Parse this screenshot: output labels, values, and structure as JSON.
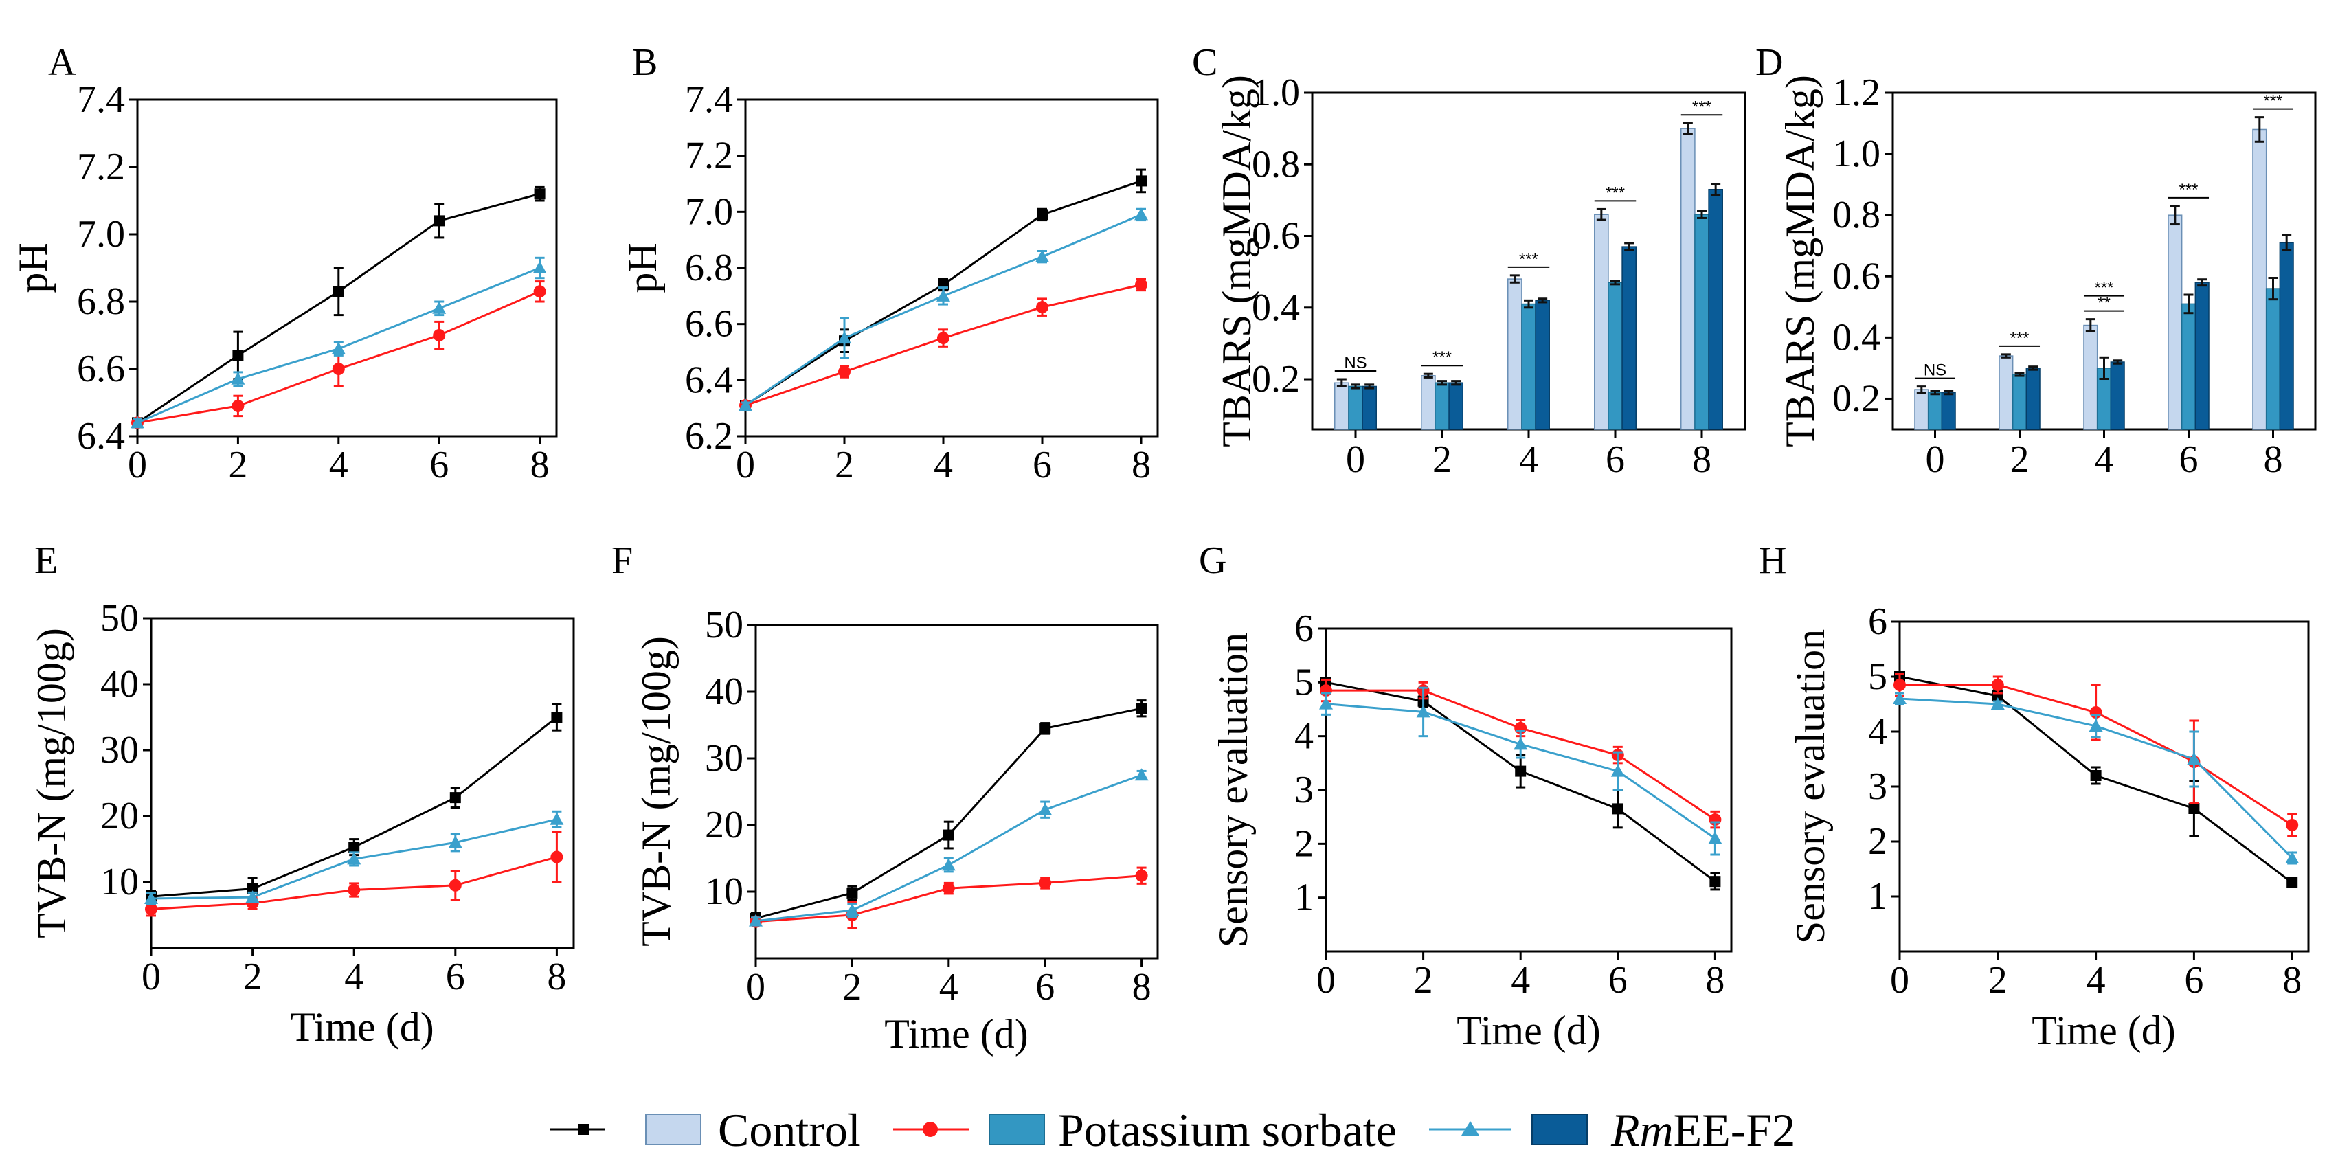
{
  "legend": {
    "items": [
      {
        "label": "Control",
        "line_color": "#000000",
        "bar_color": "#c5d7ee"
      },
      {
        "label": "Potassium sorbate",
        "line_color": "#ff1a1a",
        "bar_color": "#3397c2"
      },
      {
        "label_italic": "Rm",
        "label_rest": "EE-F2",
        "line_color": "#3aa0cc",
        "bar_color": "#0a5c98"
      }
    ]
  },
  "chart_data": [
    {
      "panel": "A",
      "type": "line",
      "ylabel": "pH",
      "xlabel": "",
      "x": [
        0,
        2,
        4,
        6,
        8
      ],
      "ylim": [
        6.4,
        7.4
      ],
      "yticks": [
        6.4,
        6.6,
        6.8,
        7.0,
        7.2,
        7.4
      ],
      "ytick_labels": [
        "6.4",
        "6.6",
        "6.8",
        "7.0",
        "7.2",
        "7.4"
      ],
      "xticks": [
        0,
        2,
        4,
        6,
        8
      ],
      "series": [
        {
          "name": "Control",
          "values": [
            6.44,
            6.64,
            6.83,
            7.04,
            7.12
          ],
          "errors": [
            0.01,
            0.07,
            0.07,
            0.05,
            0.02
          ]
        },
        {
          "name": "Potassium sorbate",
          "values": [
            6.44,
            6.49,
            6.6,
            6.7,
            6.83
          ],
          "errors": [
            0.01,
            0.03,
            0.05,
            0.04,
            0.03
          ]
        },
        {
          "name": "RmEE-F2",
          "values": [
            6.44,
            6.57,
            6.66,
            6.78,
            6.9
          ],
          "errors": [
            0.01,
            0.02,
            0.02,
            0.02,
            0.03
          ]
        }
      ]
    },
    {
      "panel": "B",
      "type": "line",
      "ylabel": "pH",
      "xlabel": "",
      "x": [
        0,
        2,
        4,
        6,
        8
      ],
      "ylim": [
        6.2,
        7.4
      ],
      "yticks": [
        6.2,
        6.4,
        6.6,
        6.8,
        7.0,
        7.2,
        7.4
      ],
      "ytick_labels": [
        "6.2",
        "6.4",
        "6.6",
        "6.8",
        "7.0",
        "7.2",
        "7.4"
      ],
      "xticks": [
        0,
        2,
        4,
        6,
        8
      ],
      "series": [
        {
          "name": "Control",
          "values": [
            6.31,
            6.54,
            6.74,
            6.99,
            7.11
          ],
          "errors": [
            0.01,
            0.04,
            0.02,
            0.02,
            0.04
          ]
        },
        {
          "name": "Potassium sorbate",
          "values": [
            6.31,
            6.43,
            6.55,
            6.66,
            6.74
          ],
          "errors": [
            0.01,
            0.02,
            0.03,
            0.03,
            0.02
          ]
        },
        {
          "name": "RmEE-F2",
          "values": [
            6.31,
            6.55,
            6.7,
            6.84,
            6.99
          ],
          "errors": [
            0.01,
            0.07,
            0.03,
            0.02,
            0.02
          ]
        }
      ]
    },
    {
      "panel": "C",
      "type": "bar",
      "ylabel": "TBARS (mgMDA/kg)",
      "xlabel": "",
      "categories": [
        "0",
        "2",
        "4",
        "6",
        "8"
      ],
      "ylim": [
        0.06,
        1.0
      ],
      "yticks": [
        0.2,
        0.4,
        0.6,
        0.8,
        1.0
      ],
      "ytick_labels": [
        "0.2",
        "0.4",
        "0.6",
        "0.8",
        "1.0"
      ],
      "significance": [
        "NS",
        "***",
        "***",
        "***",
        "***"
      ],
      "series": [
        {
          "name": "Control",
          "values": [
            0.19,
            0.21,
            0.48,
            0.66,
            0.9
          ],
          "errors": [
            0.01,
            0.005,
            0.01,
            0.015,
            0.015
          ]
        },
        {
          "name": "Potassium sorbate",
          "values": [
            0.18,
            0.19,
            0.41,
            0.47,
            0.66
          ],
          "errors": [
            0.005,
            0.005,
            0.01,
            0.005,
            0.01
          ]
        },
        {
          "name": "RmEE-F2",
          "values": [
            0.18,
            0.19,
            0.42,
            0.57,
            0.73
          ],
          "errors": [
            0.005,
            0.005,
            0.005,
            0.01,
            0.015
          ]
        }
      ]
    },
    {
      "panel": "D",
      "type": "bar",
      "ylabel": "TBARS (mgMDA/kg)",
      "xlabel": "",
      "categories": [
        "0",
        "2",
        "4",
        "6",
        "8"
      ],
      "ylim": [
        0.1,
        1.2
      ],
      "yticks": [
        0.2,
        0.4,
        0.6,
        0.8,
        1.0,
        1.2
      ],
      "ytick_labels": [
        "0.2",
        "0.4",
        "0.6",
        "0.8",
        "1.0",
        "1.2"
      ],
      "significance": [
        "NS",
        "***",
        "**|***",
        "***",
        "***"
      ],
      "series": [
        {
          "name": "Control",
          "values": [
            0.23,
            0.34,
            0.44,
            0.8,
            1.08
          ],
          "errors": [
            0.01,
            0.005,
            0.02,
            0.03,
            0.04
          ]
        },
        {
          "name": "Potassium sorbate",
          "values": [
            0.22,
            0.28,
            0.3,
            0.51,
            0.56
          ],
          "errors": [
            0.005,
            0.005,
            0.035,
            0.03,
            0.035
          ]
        },
        {
          "name": "RmEE-F2",
          "values": [
            0.22,
            0.3,
            0.32,
            0.58,
            0.71
          ],
          "errors": [
            0.005,
            0.005,
            0.005,
            0.01,
            0.025
          ]
        }
      ]
    },
    {
      "panel": "E",
      "type": "line",
      "ylabel": "TVB-N (mg/100g)",
      "xlabel": "Time (d)",
      "x": [
        0,
        2,
        4,
        6,
        8
      ],
      "ylim": [
        0,
        50
      ],
      "yticks": [
        10,
        20,
        30,
        40,
        50
      ],
      "ytick_labels": [
        "10",
        "20",
        "30",
        "40",
        "50"
      ],
      "xticks": [
        0,
        2,
        4,
        6,
        8
      ],
      "series": [
        {
          "name": "Control",
          "values": [
            7.8,
            9.0,
            15.3,
            22.8,
            35.0
          ],
          "errors": [
            0.8,
            1.6,
            1.2,
            1.5,
            2.0
          ]
        },
        {
          "name": "Potassium sorbate",
          "values": [
            5.9,
            6.8,
            8.8,
            9.5,
            13.8
          ],
          "errors": [
            1.0,
            0.9,
            1.0,
            2.2,
            3.8
          ]
        },
        {
          "name": "RmEE-F2",
          "values": [
            7.5,
            7.7,
            13.5,
            16.0,
            19.5
          ],
          "errors": [
            0.8,
            0.7,
            1.0,
            1.3,
            1.2
          ]
        }
      ]
    },
    {
      "panel": "F",
      "type": "line",
      "ylabel": "TVB-N (mg/100g)",
      "xlabel": "Time (d)",
      "x": [
        0,
        2,
        4,
        6,
        8
      ],
      "ylim": [
        0,
        50
      ],
      "yticks": [
        10,
        20,
        30,
        40,
        50
      ],
      "ytick_labels": [
        "10",
        "20",
        "30",
        "40",
        "50"
      ],
      "xticks": [
        0,
        2,
        4,
        6,
        8
      ],
      "series": [
        {
          "name": "Control",
          "values": [
            6.0,
            9.8,
            18.5,
            34.5,
            37.5
          ],
          "errors": [
            0.8,
            1.0,
            2.0,
            0.8,
            1.2
          ]
        },
        {
          "name": "Potassium sorbate",
          "values": [
            5.5,
            6.5,
            10.5,
            11.3,
            12.4
          ],
          "errors": [
            0.5,
            2.0,
            0.8,
            0.8,
            1.2
          ]
        },
        {
          "name": "RmEE-F2",
          "values": [
            5.6,
            7.2,
            14.0,
            22.3,
            27.5
          ],
          "errors": [
            0.5,
            1.0,
            1.0,
            1.2,
            0.6
          ]
        }
      ]
    },
    {
      "panel": "G",
      "type": "line",
      "ylabel": "Sensory evaluation",
      "xlabel": "Time (d)",
      "x": [
        0,
        2,
        4,
        6,
        8
      ],
      "ylim": [
        0,
        6
      ],
      "yticks": [
        1,
        2,
        3,
        4,
        5,
        6
      ],
      "ytick_labels": [
        "1",
        "2",
        "3",
        "4",
        "5",
        "6"
      ],
      "xticks": [
        0,
        2,
        4,
        6,
        8
      ],
      "series": [
        {
          "name": "Control",
          "values": [
            5.0,
            4.65,
            3.35,
            2.65,
            1.3
          ],
          "errors": [
            0.05,
            0.1,
            0.3,
            0.35,
            0.15
          ]
        },
        {
          "name": "Potassium sorbate",
          "values": [
            4.85,
            4.85,
            4.15,
            3.65,
            2.45
          ],
          "errors": [
            0.2,
            0.15,
            0.15,
            0.15,
            0.15
          ]
        },
        {
          "name": "RmEE-F2",
          "values": [
            4.6,
            4.45,
            3.85,
            3.35,
            2.1
          ],
          "errors": [
            0.2,
            0.45,
            0.25,
            0.35,
            0.3
          ]
        }
      ]
    },
    {
      "panel": "H",
      "type": "line",
      "ylabel": "Sensory evaluation",
      "xlabel": "Time (d)",
      "x": [
        0,
        2,
        4,
        6,
        8
      ],
      "ylim": [
        0,
        6
      ],
      "yticks": [
        1,
        2,
        3,
        4,
        5,
        6
      ],
      "ytick_labels": [
        "1",
        "2",
        "3",
        "4",
        "5",
        "6"
      ],
      "xticks": [
        0,
        2,
        4,
        6,
        8
      ],
      "series": [
        {
          "name": "Control",
          "values": [
            5.0,
            4.65,
            3.2,
            2.6,
            1.25
          ],
          "errors": [
            0.05,
            0.1,
            0.15,
            0.5,
            0.05
          ]
        },
        {
          "name": "Potassium sorbate",
          "values": [
            4.85,
            4.85,
            4.35,
            3.45,
            2.3
          ],
          "errors": [
            0.2,
            0.15,
            0.5,
            0.75,
            0.2
          ]
        },
        {
          "name": "RmEE-F2",
          "values": [
            4.6,
            4.5,
            4.1,
            3.5,
            1.7
          ],
          "errors": [
            0.1,
            0.05,
            0.2,
            0.5,
            0.1
          ]
        }
      ]
    }
  ]
}
